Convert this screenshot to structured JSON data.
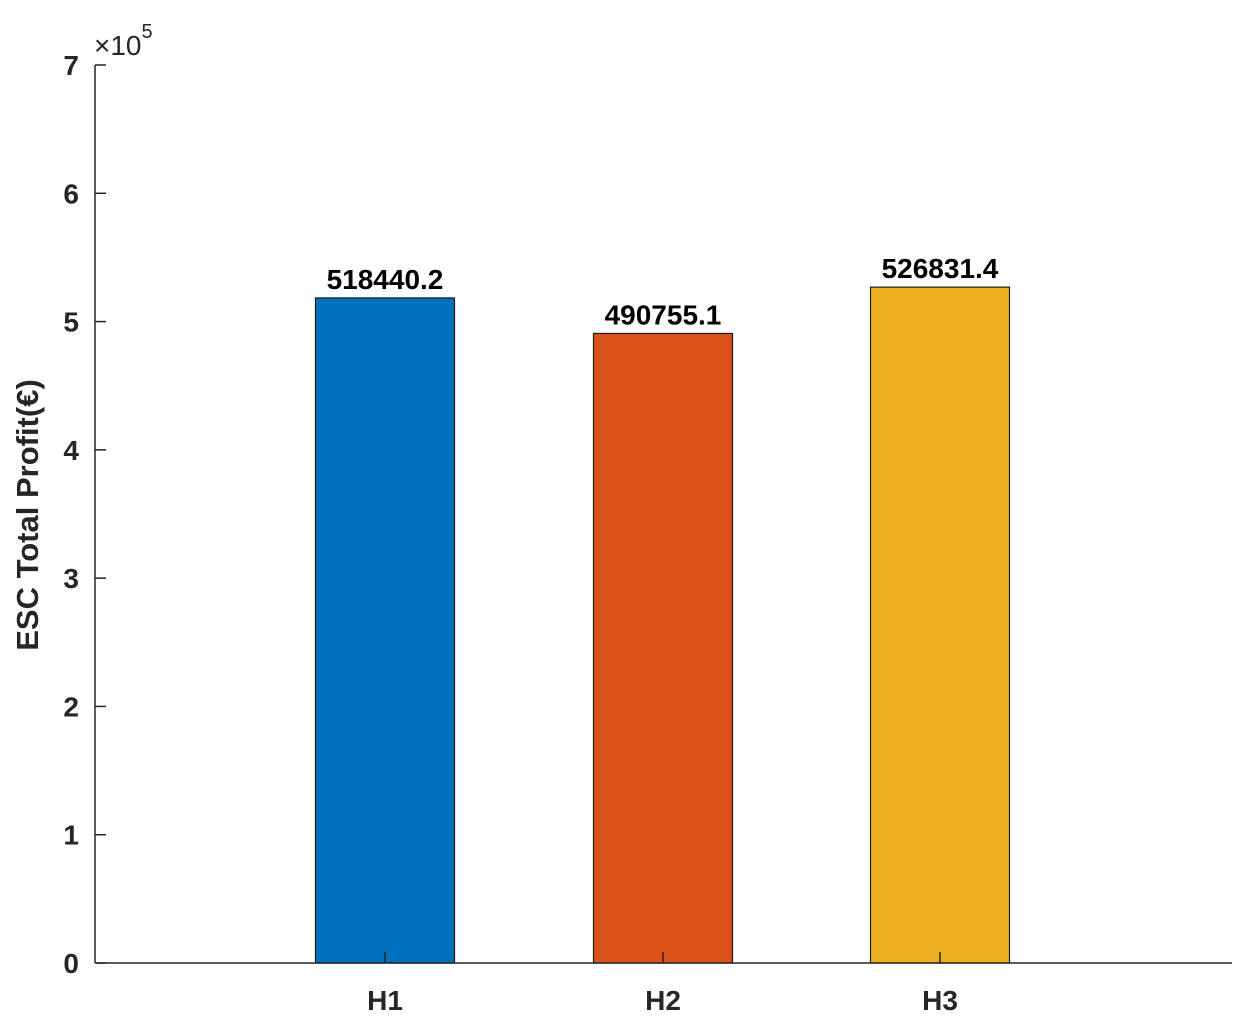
{
  "chart_data": {
    "type": "bar",
    "categories": [
      "H1",
      "H2",
      "H3"
    ],
    "values": [
      518440.2,
      490755.1,
      526831.4
    ],
    "data_labels": [
      "518440.2",
      "490755.1",
      "526831.4"
    ],
    "colors": [
      "#0072BD",
      "#D95319",
      "#EDB120"
    ],
    "title": "",
    "xlabel": "",
    "ylabel": "ESC Total Profit(€)",
    "ylim": [
      0,
      700000
    ],
    "yticks": [
      0,
      100000,
      200000,
      300000,
      400000,
      500000,
      600000,
      700000
    ],
    "ytick_labels": [
      "0",
      "1",
      "2",
      "3",
      "4",
      "5",
      "6",
      "7"
    ],
    "y_exponent": {
      "base": "10",
      "multiplier": "×",
      "power": "5"
    },
    "grid": false,
    "legend": "none"
  }
}
